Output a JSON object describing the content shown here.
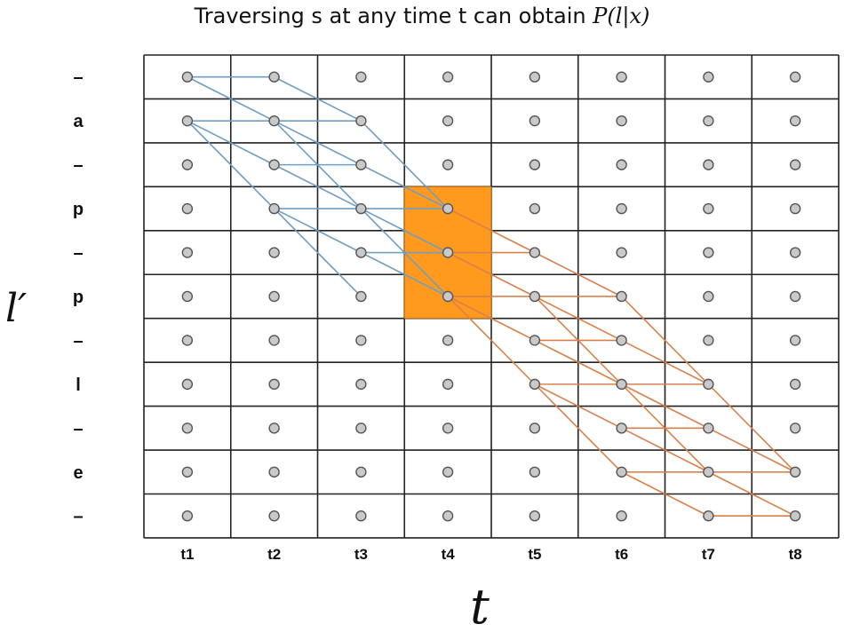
{
  "title": {
    "text": "Traversing s at any time t can obtain ",
    "math": "P(l|x)"
  },
  "rows": [
    "–",
    "a",
    "–",
    "p",
    "–",
    "p",
    "–",
    "l",
    "–",
    "e",
    "–"
  ],
  "columns": [
    "t1",
    "t2",
    "t3",
    "t4",
    "t5",
    "t6",
    "t7",
    "t8"
  ],
  "y_axis_label": "l′",
  "x_axis_label": "t",
  "highlight": {
    "col": 3,
    "row_start": 3,
    "row_end": 5,
    "color": "#ff9a1e"
  },
  "colors": {
    "forward": "#6f9dc4",
    "backward": "#d9804a",
    "node_fill": "#c9c9c9",
    "node_stroke": "#555555",
    "grid": "#222222"
  },
  "forward_edges": [
    [
      0,
      0,
      1,
      0
    ],
    [
      0,
      0,
      1,
      1
    ],
    [
      0,
      1,
      1,
      1
    ],
    [
      0,
      1,
      1,
      2
    ],
    [
      0,
      1,
      1,
      3
    ],
    [
      1,
      0,
      2,
      1
    ],
    [
      1,
      1,
      2,
      1
    ],
    [
      1,
      1,
      2,
      2
    ],
    [
      1,
      1,
      2,
      3
    ],
    [
      1,
      2,
      2,
      2
    ],
    [
      1,
      2,
      2,
      3
    ],
    [
      1,
      3,
      2,
      3
    ],
    [
      1,
      3,
      2,
      4
    ],
    [
      1,
      3,
      2,
      5
    ],
    [
      2,
      1,
      3,
      3
    ],
    [
      2,
      2,
      3,
      3
    ],
    [
      2,
      3,
      3,
      3
    ],
    [
      2,
      3,
      3,
      4
    ],
    [
      2,
      3,
      3,
      5
    ],
    [
      2,
      4,
      3,
      4
    ],
    [
      2,
      4,
      3,
      5
    ]
  ],
  "backward_edges": [
    [
      3,
      3,
      4,
      4
    ],
    [
      3,
      4,
      4,
      4
    ],
    [
      3,
      4,
      4,
      5
    ],
    [
      3,
      5,
      4,
      5
    ],
    [
      3,
      5,
      4,
      6
    ],
    [
      3,
      5,
      4,
      7
    ],
    [
      4,
      4,
      5,
      5
    ],
    [
      4,
      5,
      5,
      5
    ],
    [
      4,
      5,
      5,
      6
    ],
    [
      4,
      5,
      5,
      7
    ],
    [
      4,
      6,
      5,
      6
    ],
    [
      4,
      6,
      5,
      7
    ],
    [
      4,
      7,
      5,
      7
    ],
    [
      4,
      7,
      5,
      8
    ],
    [
      4,
      7,
      5,
      9
    ],
    [
      5,
      5,
      6,
      7
    ],
    [
      5,
      6,
      6,
      7
    ],
    [
      5,
      7,
      6,
      7
    ],
    [
      5,
      7,
      6,
      8
    ],
    [
      5,
      7,
      6,
      9
    ],
    [
      5,
      8,
      6,
      8
    ],
    [
      5,
      8,
      6,
      9
    ],
    [
      5,
      9,
      6,
      9
    ],
    [
      5,
      9,
      6,
      10
    ],
    [
      6,
      7,
      7,
      9
    ],
    [
      6,
      8,
      7,
      9
    ],
    [
      6,
      9,
      7,
      9
    ],
    [
      6,
      9,
      7,
      10
    ],
    [
      6,
      10,
      7,
      10
    ]
  ]
}
